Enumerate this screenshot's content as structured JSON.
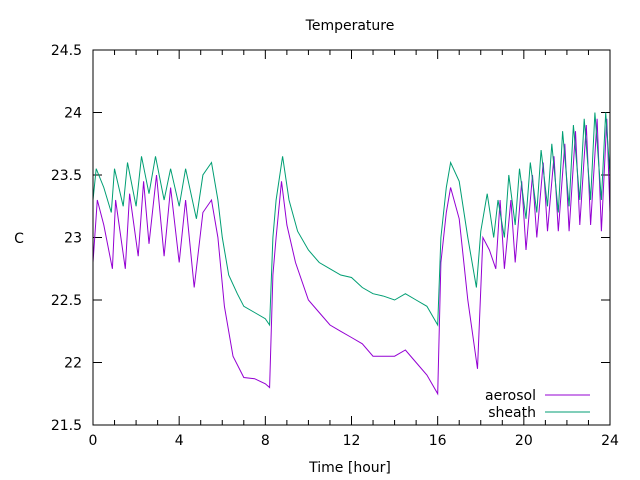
{
  "chart_data": {
    "type": "line",
    "title": "Temperature",
    "xlabel": "Time [hour]",
    "ylabel": "C",
    "xlim": [
      0,
      24
    ],
    "ylim": [
      21.5,
      24.5
    ],
    "xticks": [
      "0",
      "4",
      "8",
      "12",
      "16",
      "20",
      "24"
    ],
    "xtick_values": [
      0,
      4,
      8,
      12,
      16,
      20,
      24
    ],
    "yticks": [
      "21.5",
      "22",
      "22.5",
      "23",
      "23.5",
      "24",
      "24.5"
    ],
    "ytick_values": [
      21.5,
      22,
      22.5,
      23,
      23.5,
      24,
      24.5
    ],
    "grid": false,
    "legend_position": "bottom-right",
    "series": [
      {
        "name": "aerosol",
        "color": "#9400d3",
        "x": [
          0,
          0.2,
          0.5,
          0.9,
          1.05,
          1.5,
          1.7,
          2.1,
          2.35,
          2.6,
          2.95,
          3.3,
          3.6,
          4.0,
          4.3,
          4.7,
          5.1,
          5.5,
          5.8,
          6.1,
          6.5,
          7.0,
          7.5,
          8.0,
          8.2,
          8.35,
          8.5,
          8.75,
          9.0,
          9.4,
          10,
          10.5,
          11,
          11.5,
          12,
          12.5,
          13,
          13.5,
          14,
          14.5,
          15,
          15.5,
          16.0,
          16.15,
          16.4,
          16.6,
          17.0,
          17.4,
          17.85,
          18.1,
          18.4,
          18.7,
          18.9,
          19.1,
          19.4,
          19.6,
          19.9,
          20.1,
          20.4,
          20.6,
          20.9,
          21.1,
          21.4,
          21.6,
          21.9,
          22.1,
          22.4,
          22.6,
          22.9,
          23.1,
          23.4,
          23.6,
          23.85,
          24
        ],
        "y": [
          22.8,
          23.3,
          23.1,
          22.75,
          23.3,
          22.75,
          23.35,
          22.85,
          23.45,
          22.95,
          23.5,
          22.85,
          23.4,
          22.8,
          23.3,
          22.6,
          23.2,
          23.3,
          23.0,
          22.45,
          22.05,
          21.88,
          21.87,
          21.83,
          21.8,
          22.7,
          23.0,
          23.45,
          23.1,
          22.8,
          22.5,
          22.4,
          22.3,
          22.25,
          22.2,
          22.15,
          22.05,
          22.05,
          22.05,
          22.1,
          22.0,
          21.9,
          21.75,
          22.8,
          23.2,
          23.4,
          23.15,
          22.5,
          21.95,
          23.0,
          22.9,
          22.75,
          23.3,
          22.75,
          23.3,
          22.8,
          23.45,
          22.9,
          23.5,
          23.0,
          23.6,
          23.05,
          23.65,
          23.05,
          23.75,
          23.05,
          23.85,
          23.1,
          23.9,
          23.1,
          23.95,
          23.05,
          23.95,
          23.2
        ]
      },
      {
        "name": "sheath",
        "color": "#009e73",
        "x": [
          0,
          0.15,
          0.5,
          0.85,
          1.0,
          1.4,
          1.6,
          2.0,
          2.25,
          2.6,
          2.9,
          3.3,
          3.6,
          4.0,
          4.3,
          4.8,
          5.1,
          5.5,
          5.8,
          6.0,
          6.3,
          6.7,
          7.0,
          7.5,
          8.0,
          8.2,
          8.35,
          8.5,
          8.8,
          9.1,
          9.5,
          10.0,
          10.5,
          11,
          11.5,
          12,
          12.5,
          13,
          13.5,
          14,
          14.5,
          15,
          15.5,
          16.0,
          16.15,
          16.4,
          16.6,
          17.0,
          17.4,
          17.8,
          18.0,
          18.3,
          18.6,
          18.8,
          19.1,
          19.3,
          19.6,
          19.8,
          20.1,
          20.3,
          20.6,
          20.8,
          21.1,
          21.3,
          21.6,
          21.8,
          22.1,
          22.3,
          22.6,
          22.8,
          23.1,
          23.3,
          23.6,
          23.8,
          24
        ],
        "y": [
          23.3,
          23.55,
          23.4,
          23.2,
          23.55,
          23.25,
          23.6,
          23.25,
          23.65,
          23.35,
          23.65,
          23.3,
          23.55,
          23.25,
          23.55,
          23.15,
          23.5,
          23.6,
          23.3,
          23.0,
          22.7,
          22.55,
          22.45,
          22.4,
          22.35,
          22.3,
          23.0,
          23.3,
          23.65,
          23.3,
          23.05,
          22.9,
          22.8,
          22.75,
          22.7,
          22.68,
          22.6,
          22.55,
          22.53,
          22.5,
          22.55,
          22.5,
          22.45,
          22.3,
          23.0,
          23.4,
          23.6,
          23.45,
          23.0,
          22.6,
          23.05,
          23.35,
          23.0,
          23.3,
          23.0,
          23.5,
          23.1,
          23.55,
          23.15,
          23.6,
          23.2,
          23.7,
          23.25,
          23.75,
          23.2,
          23.85,
          23.25,
          23.9,
          23.3,
          23.95,
          23.3,
          24.0,
          23.3,
          24.0,
          23.5
        ]
      }
    ]
  }
}
